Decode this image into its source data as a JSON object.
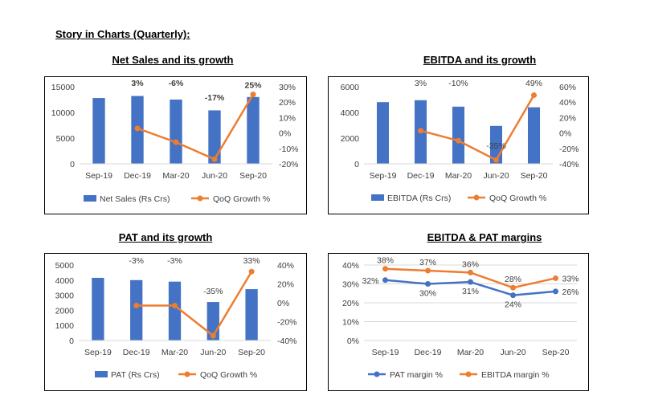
{
  "page_title": "Story in Charts (Quarterly):",
  "chart_titles": [
    "Net Sales and its growth",
    "EBITDA and its growth",
    "PAT and its growth",
    "EBITDA & PAT margins"
  ],
  "colors": {
    "bar": "#4472C4",
    "line_orange": "#ED7D31",
    "line_blue": "#4472C4"
  },
  "chart_data": [
    {
      "type": "bar+line",
      "title": "Net Sales and its growth",
      "categories": [
        "Sep-19",
        "Dec-19",
        "Mar-20",
        "Jun-20",
        "Sep-20"
      ],
      "series": [
        {
          "name": "Net Sales (Rs Crs)",
          "type": "bar",
          "axis": "left",
          "values": [
            12800,
            13200,
            12500,
            10400,
            13000
          ]
        },
        {
          "name": "QoQ Growth %",
          "type": "line",
          "axis": "right",
          "values": [
            null,
            0.03,
            -0.06,
            -0.17,
            0.25
          ],
          "labels": [
            "",
            "3%",
            "-6%",
            "-17%",
            "25%"
          ]
        }
      ],
      "y_left": {
        "min": 0,
        "max": 15000,
        "ticks": [
          0,
          5000,
          10000,
          15000
        ],
        "tick_labels": [
          "0",
          "5000",
          "10000",
          "15000"
        ]
      },
      "y_right": {
        "min": -0.2,
        "max": 0.3,
        "ticks": [
          -0.2,
          -0.1,
          0,
          0.1,
          0.2,
          0.3
        ],
        "tick_labels": [
          "-20%",
          "-10%",
          "0%",
          "10%",
          "20%",
          "30%"
        ]
      },
      "label_style": "bold",
      "legend": "bottom",
      "grid": false
    },
    {
      "type": "bar+line",
      "title": "EBITDA and its growth",
      "categories": [
        "Sep-19",
        "Dec-19",
        "Mar-20",
        "Jun-20",
        "Sep-20"
      ],
      "series": [
        {
          "name": "EBITDA (Rs Crs)",
          "type": "bar",
          "axis": "left",
          "values": [
            4800,
            4950,
            4450,
            2950,
            4400
          ]
        },
        {
          "name": "QoQ Growth %",
          "type": "line",
          "axis": "right",
          "values": [
            null,
            0.03,
            -0.1,
            -0.35,
            0.49
          ],
          "labels": [
            "",
            "3%",
            "-10%",
            "-35%",
            "49%"
          ]
        }
      ],
      "y_left": {
        "min": 0,
        "max": 6000,
        "ticks": [
          0,
          2000,
          4000,
          6000
        ],
        "tick_labels": [
          "0",
          "2000",
          "4000",
          "6000"
        ]
      },
      "y_right": {
        "min": -0.4,
        "max": 0.6,
        "ticks": [
          -0.4,
          -0.2,
          0,
          0.2,
          0.4,
          0.6
        ],
        "tick_labels": [
          "-40%",
          "-20%",
          "0%",
          "20%",
          "40%",
          "60%"
        ]
      },
      "label_style": "normal",
      "legend": "bottom",
      "grid": false
    },
    {
      "type": "bar+line",
      "title": "PAT and its growth",
      "categories": [
        "Sep-19",
        "Dec-19",
        "Mar-20",
        "Jun-20",
        "Sep-20"
      ],
      "series": [
        {
          "name": "PAT (Rs Crs)",
          "type": "bar",
          "axis": "left",
          "values": [
            4150,
            4000,
            3900,
            2550,
            3400
          ]
        },
        {
          "name": "QoQ Growth %",
          "type": "line",
          "axis": "right",
          "values": [
            null,
            -0.03,
            -0.03,
            -0.35,
            0.33
          ],
          "labels": [
            "",
            "-3%",
            "-3%",
            "-35%",
            "33%"
          ]
        }
      ],
      "y_left": {
        "min": 0,
        "max": 5000,
        "ticks": [
          0,
          1000,
          2000,
          3000,
          4000,
          5000
        ],
        "tick_labels": [
          "0",
          "1000",
          "2000",
          "3000",
          "4000",
          "5000"
        ]
      },
      "y_right": {
        "min": -0.4,
        "max": 0.4,
        "ticks": [
          -0.4,
          -0.2,
          0,
          0.2,
          0.4
        ],
        "tick_labels": [
          "-40%",
          "-20%",
          "0%",
          "20%",
          "40%"
        ]
      },
      "label_style": "normal",
      "legend": "bottom",
      "grid": false
    },
    {
      "type": "line",
      "title": "EBITDA & PAT margins",
      "categories": [
        "Sep-19",
        "Dec-19",
        "Mar-20",
        "Jun-20",
        "Sep-20"
      ],
      "series": [
        {
          "name": "PAT margin %",
          "type": "line",
          "color": "#4472C4",
          "values": [
            0.32,
            0.3,
            0.31,
            0.24,
            0.26
          ],
          "labels": [
            "32%",
            "30%",
            "31%",
            "24%",
            "26%"
          ],
          "label_pos": [
            "left",
            "below",
            "below",
            "below",
            "right"
          ]
        },
        {
          "name": "EBITDA margin %",
          "type": "line",
          "color": "#ED7D31",
          "values": [
            0.38,
            0.37,
            0.36,
            0.28,
            0.33
          ],
          "labels": [
            "38%",
            "37%",
            "36%",
            "28%",
            "33%"
          ],
          "label_pos": [
            "above",
            "above",
            "above",
            "above",
            "right"
          ]
        }
      ],
      "y_left": {
        "min": 0,
        "max": 0.4,
        "ticks": [
          0,
          0.1,
          0.2,
          0.3,
          0.4
        ],
        "tick_labels": [
          "0%",
          "10%",
          "20%",
          "30%",
          "40%"
        ]
      },
      "legend": "bottom",
      "grid": true
    }
  ]
}
